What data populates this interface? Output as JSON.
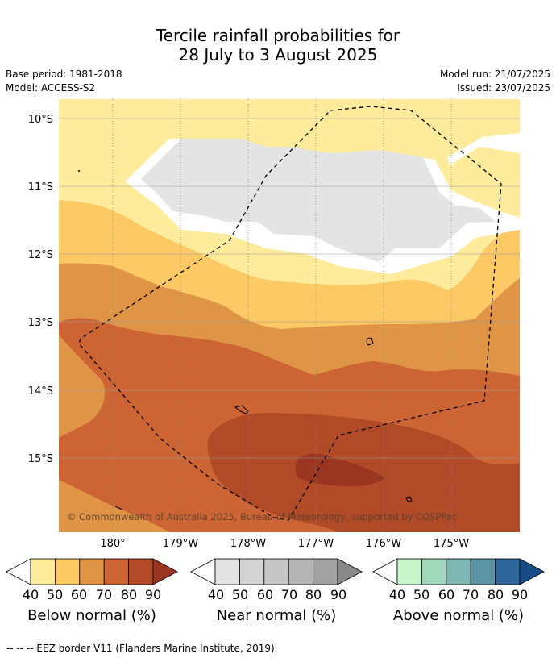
{
  "title_line1": "Tercile rainfall probabilities for",
  "title_line2": "28 July to 3 August 2025",
  "base_period": "Base period: 1981-2018",
  "model": "Model: ACCESS-S2",
  "model_run": "Model run: 21/07/2025",
  "issued": "Issued: 23/07/2025",
  "lat_labels": [
    "10°S",
    "11°S",
    "12°S",
    "13°S",
    "14°S",
    "15°S"
  ],
  "lon_labels": [
    "180°",
    "179°W",
    "178°W",
    "177°W",
    "176°W",
    "175°W"
  ],
  "copyright": "© Commonwealth of Australia 2025, Bureau of Meteorology, supported by COSPPac",
  "colorbars": [
    {
      "title": "Below normal (%)",
      "ticks": [
        "40",
        "50",
        "60",
        "70",
        "80",
        "90"
      ],
      "colors": [
        "#ffeb9c",
        "#fdc964",
        "#e09446",
        "#cc6433",
        "#b04a27",
        "#993520"
      ]
    },
    {
      "title": "Near normal (%)",
      "ticks": [
        "40",
        "50",
        "60",
        "70",
        "80",
        "90"
      ],
      "colors": [
        "#e4e4e4",
        "#d4d4d4",
        "#c6c6c6",
        "#b5b5b5",
        "#a2a2a2",
        "#888888"
      ]
    },
    {
      "title": "Above normal (%)",
      "ticks": [
        "40",
        "50",
        "60",
        "70",
        "80",
        "90"
      ],
      "colors": [
        "#c8f7cc",
        "#a2d9bc",
        "#7fb7b3",
        "#5c93a5",
        "#2f6699",
        "#174c86"
      ]
    }
  ],
  "footnote": "-- -- -- EEZ border V11 (Flanders Marine Institute, 2019)."
}
